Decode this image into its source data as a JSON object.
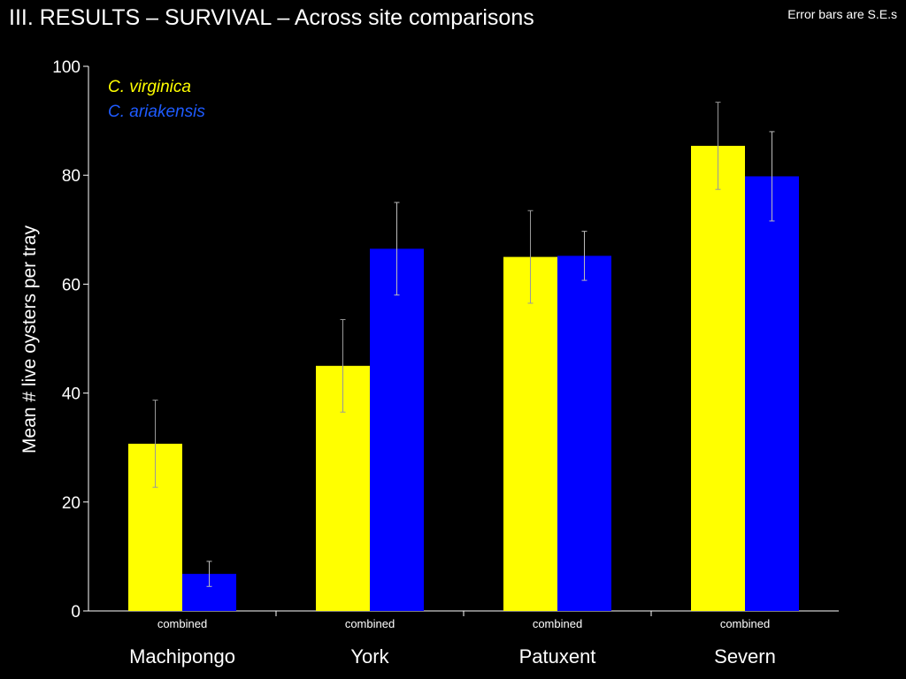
{
  "title": "III.  RESULTS –  SURVIVAL – Across site comparisons",
  "note": "Error bars are S.E.s",
  "chart_data": {
    "type": "bar",
    "title": "",
    "xlabel": "",
    "ylabel": "Mean # live oysters per tray",
    "ylim": [
      0,
      100
    ],
    "yticks": [
      "0",
      "20",
      "40",
      "60",
      "80",
      "100"
    ],
    "grid": false,
    "legend_position": "top-left",
    "subcategory_label": "combined",
    "categories": [
      "Machipongo",
      "York",
      "Patuxent",
      "Severn"
    ],
    "series": [
      {
        "name": "C. virginica",
        "color": "#FFFF00",
        "values": [
          30.7,
          45.0,
          65.0,
          85.4
        ],
        "se": [
          8.0,
          8.5,
          8.5,
          8.0
        ]
      },
      {
        "name": "C. ariakensis",
        "color": "#0000FF",
        "legend_color": "#1E5BFF",
        "values": [
          6.8,
          66.5,
          65.2,
          79.8
        ],
        "se": [
          2.3,
          8.5,
          4.5,
          8.2
        ]
      }
    ]
  }
}
